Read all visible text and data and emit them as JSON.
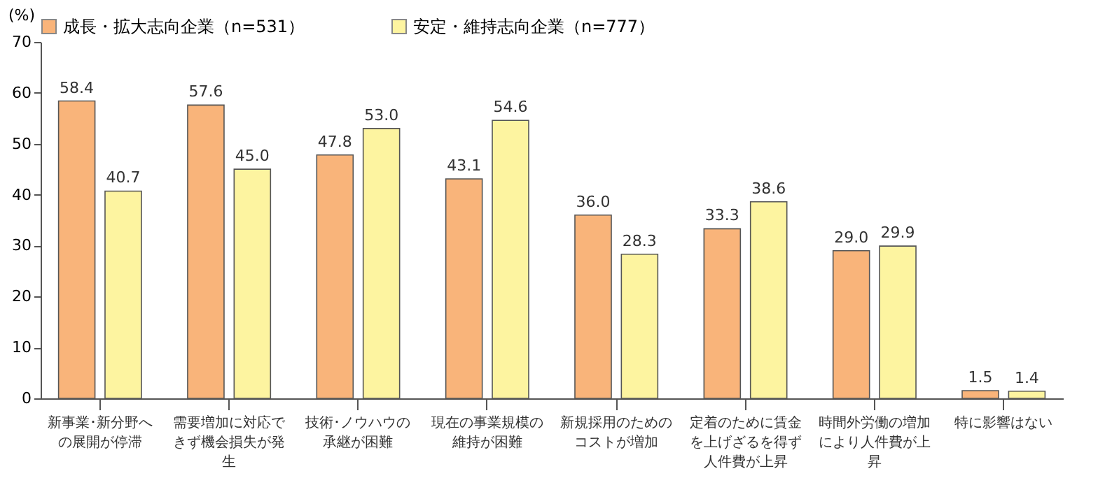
{
  "chart_data": {
    "type": "bar",
    "ylabel": "(%)",
    "categories": [
      "新事業･新分野への展開が停滞",
      "需要増加に対応できず機会損失が発生",
      "技術･ノウハウの承継が困難",
      "現在の事業規模の維持が困難",
      "新規採用のためのコストが増加",
      "定着のために賃金を上げざるを得ず人件費が上昇",
      "時間外労働の増加により人件費が上昇",
      "特に影響はない"
    ],
    "series": [
      {
        "name": "成長・拡大志向企業（n=531）",
        "color": "#f9b47a",
        "values": [
          58.4,
          57.6,
          47.8,
          43.1,
          36.0,
          33.3,
          29.0,
          1.5
        ],
        "value_labels": [
          "58.4",
          "57.6",
          "47.8",
          "43.1",
          "36.0",
          "33.3",
          "29.0",
          "1.5"
        ]
      },
      {
        "name": "安定・維持志向企業（n=777）",
        "color": "#fdf4a0",
        "values": [
          40.7,
          45.0,
          53.0,
          54.6,
          28.3,
          38.6,
          29.9,
          1.4
        ],
        "value_labels": [
          "40.7",
          "45.0",
          "53.0",
          "54.6",
          "28.3",
          "38.6",
          "29.9",
          "1.4"
        ]
      }
    ],
    "ylim": [
      0,
      70
    ],
    "yticks": [
      0,
      10,
      20,
      30,
      40,
      50,
      60,
      70
    ],
    "grid": false,
    "legend": "top"
  }
}
